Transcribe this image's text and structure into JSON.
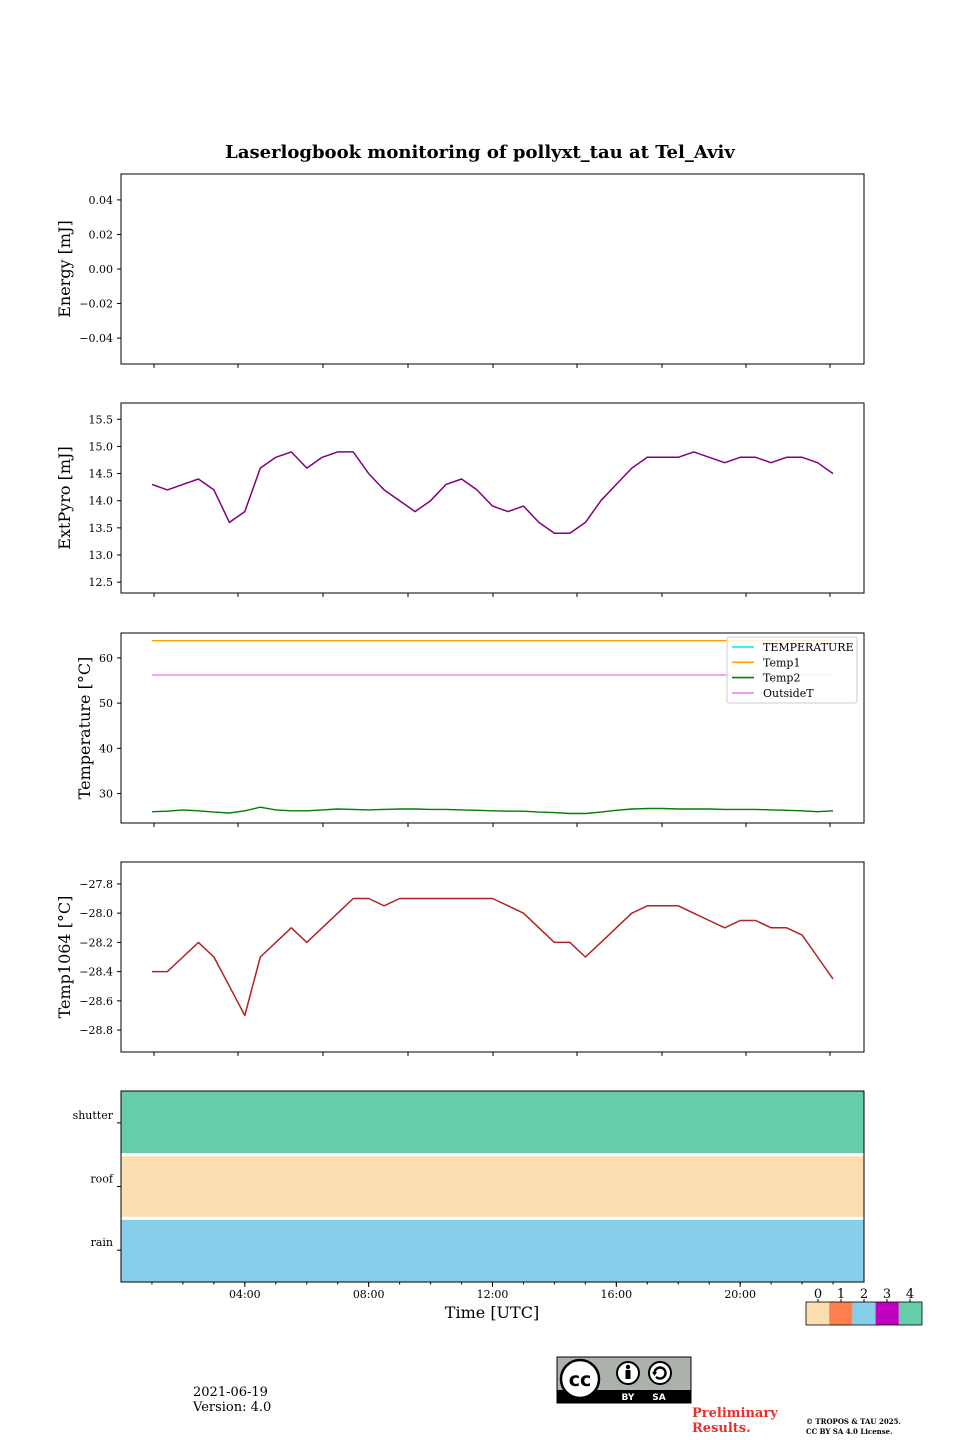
{
  "chart_data": [
    {
      "type": "line",
      "title": "Laserlogbook monitoring of pollyxt_tau at Tel_Aviv",
      "ylabel": "Energy [mJ]",
      "ylim": [
        -0.055,
        0.055
      ],
      "yticks": [
        0.04,
        0.02,
        0.0,
        -0.02,
        -0.04
      ],
      "yticklabels": [
        "0.04",
        "0.02",
        "0.00",
        "−0.02",
        "−0.04"
      ],
      "xlim": [
        0,
        24
      ],
      "series": []
    },
    {
      "type": "line",
      "ylabel": "ExtPyro [mJ]",
      "ylim": [
        12.3,
        15.8
      ],
      "yticks": [
        15.5,
        15.0,
        14.5,
        14.0,
        13.5,
        13.0,
        12.5
      ],
      "yticklabels": [
        "15.5",
        "15.0",
        "14.5",
        "14.0",
        "13.5",
        "13.0",
        "12.5"
      ],
      "xlim": [
        0,
        24
      ],
      "series": [
        {
          "color": "#800080",
          "x": [
            1,
            1.5,
            2,
            2.5,
            3,
            3.5,
            4,
            4.5,
            5,
            5.5,
            6,
            6.5,
            7,
            7.5,
            8,
            8.5,
            9,
            9.5,
            10,
            10.5,
            11,
            11.5,
            12,
            12.5,
            13,
            13.5,
            14,
            14.5,
            15,
            15.5,
            16,
            16.5,
            17,
            17.5,
            18,
            18.5,
            19,
            19.5,
            20,
            20.5,
            21,
            21.5,
            22,
            22.5,
            23
          ],
          "y": [
            14.3,
            14.2,
            14.3,
            14.4,
            14.2,
            13.6,
            13.8,
            14.6,
            14.8,
            14.9,
            14.6,
            14.8,
            14.9,
            14.9,
            14.5,
            14.2,
            14.0,
            13.8,
            14.0,
            14.3,
            14.4,
            14.2,
            13.9,
            13.8,
            13.9,
            13.6,
            13.4,
            13.4,
            13.6,
            14.0,
            14.3,
            14.6,
            14.8,
            14.8,
            14.8,
            14.9,
            14.8,
            14.7,
            14.8,
            14.8,
            14.7,
            14.8,
            14.8,
            14.7,
            14.5
          ]
        }
      ]
    },
    {
      "type": "line",
      "ylabel": "Temperature [°C]",
      "ylim": [
        23.5,
        65.5
      ],
      "yticks": [
        60,
        50,
        40,
        30
      ],
      "yticklabels": [
        "60",
        "50",
        "40",
        "30"
      ],
      "xlim": [
        0,
        24
      ],
      "legend_position": "top-right",
      "series": [
        {
          "name": "TEMPERATURE",
          "color": "#00e5ee",
          "x": [],
          "y": []
        },
        {
          "name": "Temp1",
          "color": "#ffa500",
          "x": [
            1,
            23
          ],
          "y": [
            63.8,
            63.8
          ]
        },
        {
          "name": "Temp2",
          "color": "#008000",
          "x": [
            1,
            1.5,
            2,
            2.5,
            3,
            3.5,
            4,
            4.5,
            5,
            5.5,
            6,
            6.5,
            7,
            7.5,
            8,
            8.5,
            9,
            9.5,
            10,
            10.5,
            11,
            11.5,
            12,
            12.5,
            13,
            13.5,
            14,
            14.5,
            15,
            15.5,
            16,
            16.5,
            17,
            17.5,
            18,
            18.5,
            19,
            19.5,
            20,
            20.5,
            21,
            21.5,
            22,
            22.5,
            23
          ],
          "y": [
            26.0,
            26.1,
            26.4,
            26.2,
            25.9,
            25.7,
            26.2,
            27.0,
            26.4,
            26.2,
            26.2,
            26.4,
            26.6,
            26.5,
            26.4,
            26.5,
            26.6,
            26.6,
            26.5,
            26.5,
            26.4,
            26.3,
            26.2,
            26.1,
            26.1,
            25.9,
            25.8,
            25.6,
            25.6,
            25.9,
            26.3,
            26.6,
            26.7,
            26.7,
            26.6,
            26.6,
            26.6,
            26.5,
            26.5,
            26.5,
            26.4,
            26.3,
            26.2,
            26.0,
            26.2
          ]
        },
        {
          "name": "OutsideT",
          "color": "#ee82ee",
          "x": [
            1,
            23
          ],
          "y": [
            56.2,
            56.2
          ]
        }
      ]
    },
    {
      "type": "line",
      "ylabel": "Temp1064 [°C]",
      "ylim": [
        -28.95,
        -27.65
      ],
      "yticks": [
        -27.8,
        -28.0,
        -28.2,
        -28.4,
        -28.6,
        -28.8
      ],
      "yticklabels": [
        "−27.8",
        "−28.0",
        "−28.2",
        "−28.4",
        "−28.6",
        "−28.8"
      ],
      "xlim": [
        0,
        24
      ],
      "series": [
        {
          "color": "#b22222",
          "x": [
            1,
            1.5,
            2,
            2.5,
            3,
            3.5,
            4,
            4.5,
            5,
            5.5,
            6,
            6.5,
            7,
            7.5,
            8,
            8.5,
            9,
            9.5,
            10,
            10.5,
            11,
            11.5,
            12,
            12.5,
            13,
            13.5,
            14,
            14.5,
            15,
            15.5,
            16,
            16.5,
            17,
            17.5,
            18,
            18.5,
            19,
            19.5,
            20,
            20.5,
            21,
            21.5,
            22,
            22.5,
            23
          ],
          "y": [
            -28.4,
            -28.4,
            -28.3,
            -28.2,
            -28.3,
            -28.5,
            -28.7,
            -28.3,
            -28.2,
            -28.1,
            -28.2,
            -28.1,
            -28.0,
            -27.9,
            -27.9,
            -27.95,
            -27.9,
            -27.9,
            -27.9,
            -27.9,
            -27.9,
            -27.9,
            -27.9,
            -27.95,
            -28.0,
            -28.1,
            -28.2,
            -28.2,
            -28.3,
            -28.2,
            -28.1,
            -28.0,
            -27.95,
            -27.95,
            -27.95,
            -28.0,
            -28.05,
            -28.1,
            -28.05,
            -28.05,
            -28.1,
            -28.1,
            -28.15,
            -28.3,
            -28.45
          ]
        }
      ]
    },
    {
      "type": "heatmap",
      "xlabel": "Time [UTC]",
      "xlim": [
        0,
        24
      ],
      "xticks": [
        4,
        8,
        12,
        16,
        20
      ],
      "xticklabels": [
        "04:00",
        "08:00",
        "12:00",
        "16:00",
        "20:00"
      ],
      "rows": [
        "shutter",
        "roof",
        "rain"
      ],
      "values": [
        4,
        0,
        2
      ],
      "colorbar": {
        "ticklabels": [
          "0",
          "1",
          "2",
          "3",
          "4"
        ],
        "colors": [
          "#fddeb0",
          "#ff7f50",
          "#87ceeb",
          "#c000c0",
          "#66cdaa"
        ]
      }
    }
  ],
  "footer": {
    "date": "2021-06-19",
    "version": "Version: 4.0",
    "license_badge": "cc-by-sa-icon",
    "license_labels": [
      "BY",
      "SA"
    ],
    "preliminary": [
      "Preliminary",
      "Results."
    ],
    "copyright": [
      "© TROPOS & TAU 2025.",
      "CC BY SA 4.0 License."
    ]
  }
}
